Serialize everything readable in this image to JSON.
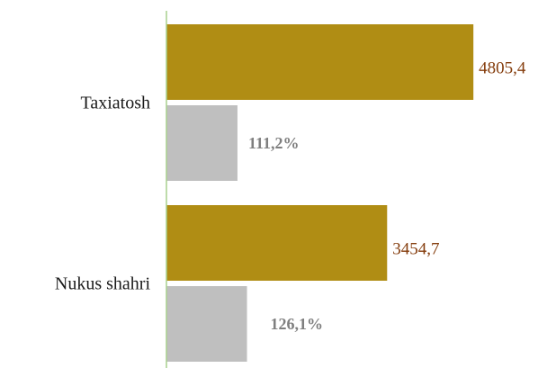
{
  "chart_data": {
    "type": "bar",
    "orientation": "horizontal",
    "categories": [
      "Taxiatosh",
      "Nukus shahri"
    ],
    "series": [
      {
        "color": "#b08d14",
        "label_color": "#843c0c",
        "values": [
          4805.4,
          3454.7
        ],
        "value_labels": [
          "4805,4",
          "3454,7"
        ]
      },
      {
        "color": "#bfbfbf",
        "label_color": "#7f7f7f",
        "label_bold": true,
        "axis": "x2",
        "values": [
          111.2,
          126.1
        ],
        "value_labels": [
          "111,2%",
          "126,1%"
        ]
      }
    ],
    "xlim": [
      0,
      6000
    ],
    "x2lim": [
      0,
      600
    ],
    "axis_color": "#a9d18e"
  }
}
